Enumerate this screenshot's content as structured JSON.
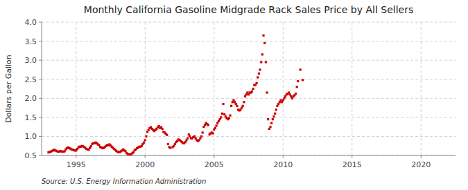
{
  "chart_data": {
    "type": "scatter",
    "title": "Monthly California Gasoline Midgrade Rack Sales Price by All Sellers",
    "ylabel": "Dollars per Gallon",
    "source": "Source: U.S. Energy Information Administration",
    "color": "#cc0000",
    "marker": "square",
    "grid": true,
    "xlim": [
      1992.5,
      2022.5
    ],
    "ylim": [
      0.5,
      4.0
    ],
    "xticks": [
      1995,
      2000,
      2005,
      2010,
      2015,
      2020
    ],
    "yticks": [
      0.5,
      {
        "value": 1.0,
        "label": "1.0"
      },
      1.5,
      {
        "value": 2.0,
        "label": "2.0"
      },
      2.5,
      {
        "value": 3.0,
        "label": "3.0"
      },
      3.5,
      {
        "value": 4.0,
        "label": "4.0"
      }
    ],
    "x": [
      1993.0,
      1993.083,
      1993.167,
      1993.25,
      1993.333,
      1993.417,
      1993.5,
      1993.583,
      1993.667,
      1993.75,
      1993.833,
      1993.917,
      1994.0,
      1994.083,
      1994.167,
      1994.25,
      1994.333,
      1994.417,
      1994.5,
      1994.583,
      1994.667,
      1994.75,
      1994.833,
      1994.917,
      1995.0,
      1995.083,
      1995.167,
      1995.25,
      1995.333,
      1995.417,
      1995.5,
      1995.583,
      1995.667,
      1995.75,
      1995.833,
      1995.917,
      1996.0,
      1996.083,
      1996.167,
      1996.25,
      1996.333,
      1996.417,
      1996.5,
      1996.583,
      1996.667,
      1996.75,
      1996.833,
      1996.917,
      1997.0,
      1997.083,
      1997.167,
      1997.25,
      1997.333,
      1997.417,
      1997.5,
      1997.583,
      1997.667,
      1997.75,
      1997.833,
      1997.917,
      1998.0,
      1998.083,
      1998.167,
      1998.25,
      1998.333,
      1998.417,
      1998.5,
      1998.583,
      1998.667,
      1998.75,
      1998.833,
      1998.917,
      1999.0,
      1999.083,
      1999.167,
      1999.25,
      1999.333,
      1999.417,
      1999.5,
      1999.583,
      1999.667,
      1999.75,
      1999.833,
      1999.917,
      2000.0,
      2000.083,
      2000.167,
      2000.25,
      2000.333,
      2000.417,
      2000.5,
      2000.583,
      2000.667,
      2000.75,
      2000.833,
      2000.917,
      2001.0,
      2001.083,
      2001.167,
      2001.25,
      2001.333,
      2001.417,
      2001.5,
      2001.583,
      2001.667,
      2001.75,
      2001.833,
      2002.0,
      2002.083,
      2002.167,
      2002.25,
      2002.333,
      2002.417,
      2002.5,
      2002.583,
      2002.667,
      2002.75,
      2002.833,
      2002.917,
      2003.0,
      2003.083,
      2003.167,
      2003.25,
      2003.333,
      2003.417,
      2003.5,
      2003.583,
      2003.667,
      2003.75,
      2003.833,
      2003.917,
      2004.0,
      2004.083,
      2004.167,
      2004.25,
      2004.333,
      2004.417,
      2004.5,
      2004.583,
      2004.667,
      2004.75,
      2004.833,
      2004.917,
      2005.0,
      2005.083,
      2005.167,
      2005.25,
      2005.333,
      2005.417,
      2005.5,
      2005.583,
      2005.667,
      2005.75,
      2005.833,
      2005.917,
      2006.0,
      2006.083,
      2006.167,
      2006.25,
      2006.333,
      2006.417,
      2006.5,
      2006.583,
      2006.667,
      2006.75,
      2006.833,
      2006.917,
      2007.0,
      2007.083,
      2007.167,
      2007.25,
      2007.333,
      2007.417,
      2007.5,
      2007.583,
      2007.667,
      2007.75,
      2007.833,
      2007.917,
      2008.0,
      2008.083,
      2008.167,
      2008.25,
      2008.333,
      2008.417,
      2008.5,
      2008.583,
      2008.667,
      2008.75,
      2008.833,
      2008.917,
      2009.0,
      2009.083,
      2009.167,
      2009.25,
      2009.333,
      2009.417,
      2009.5,
      2009.583,
      2009.667,
      2009.75,
      2009.833,
      2009.917,
      2010.0,
      2010.083,
      2010.167,
      2010.25,
      2010.333,
      2010.417,
      2010.5,
      2010.583,
      2010.667,
      2010.75,
      2010.833,
      2010.917,
      2011.0,
      2011.083,
      2011.25,
      2011.417
    ],
    "values": [
      0.58,
      0.59,
      0.6,
      0.62,
      0.63,
      0.65,
      0.63,
      0.62,
      0.6,
      0.6,
      0.61,
      0.61,
      0.6,
      0.6,
      0.61,
      0.66,
      0.69,
      0.71,
      0.69,
      0.68,
      0.66,
      0.65,
      0.64,
      0.63,
      0.63,
      0.67,
      0.71,
      0.73,
      0.73,
      0.75,
      0.74,
      0.72,
      0.7,
      0.67,
      0.66,
      0.65,
      0.7,
      0.74,
      0.8,
      0.82,
      0.82,
      0.84,
      0.82,
      0.79,
      0.77,
      0.72,
      0.71,
      0.69,
      0.7,
      0.72,
      0.75,
      0.77,
      0.77,
      0.79,
      0.76,
      0.73,
      0.7,
      0.67,
      0.65,
      0.62,
      0.59,
      0.59,
      0.59,
      0.61,
      0.63,
      0.66,
      0.63,
      0.61,
      0.56,
      0.53,
      0.53,
      0.53,
      0.53,
      0.56,
      0.59,
      0.64,
      0.66,
      0.69,
      0.71,
      0.73,
      0.73,
      0.75,
      0.8,
      0.84,
      0.9,
      1.0,
      1.12,
      1.17,
      1.22,
      1.24,
      1.2,
      1.17,
      1.14,
      1.17,
      1.2,
      1.24,
      1.27,
      1.22,
      1.24,
      1.2,
      1.12,
      1.1,
      1.07,
      1.04,
      0.8,
      0.72,
      0.7,
      0.72,
      0.75,
      0.8,
      0.85,
      0.88,
      0.92,
      0.9,
      0.88,
      0.85,
      0.82,
      0.82,
      0.85,
      0.9,
      0.95,
      1.05,
      1.0,
      0.95,
      0.95,
      0.98,
      1.0,
      0.95,
      0.9,
      0.88,
      0.9,
      0.95,
      1.0,
      1.1,
      1.25,
      1.3,
      1.35,
      1.32,
      1.3,
      1.05,
      1.08,
      1.1,
      1.08,
      1.18,
      1.22,
      1.28,
      1.35,
      1.4,
      1.45,
      1.5,
      1.6,
      1.85,
      1.58,
      1.52,
      1.48,
      1.45,
      1.48,
      1.55,
      1.8,
      1.9,
      1.95,
      1.9,
      1.85,
      1.8,
      1.7,
      1.68,
      1.7,
      1.75,
      1.8,
      1.9,
      2.05,
      2.1,
      2.15,
      2.1,
      2.15,
      2.15,
      2.18,
      2.25,
      2.35,
      2.35,
      2.4,
      2.55,
      2.65,
      2.75,
      2.95,
      3.15,
      3.65,
      3.45,
      2.95,
      2.15,
      1.45,
      1.2,
      1.25,
      1.35,
      1.45,
      1.52,
      1.6,
      1.7,
      1.8,
      1.85,
      1.9,
      1.95,
      1.9,
      1.95,
      2.0,
      2.05,
      2.1,
      2.12,
      2.15,
      2.1,
      2.05,
      2.0,
      2.05,
      2.08,
      2.12,
      2.3,
      2.45,
      2.75,
      2.48
    ]
  }
}
